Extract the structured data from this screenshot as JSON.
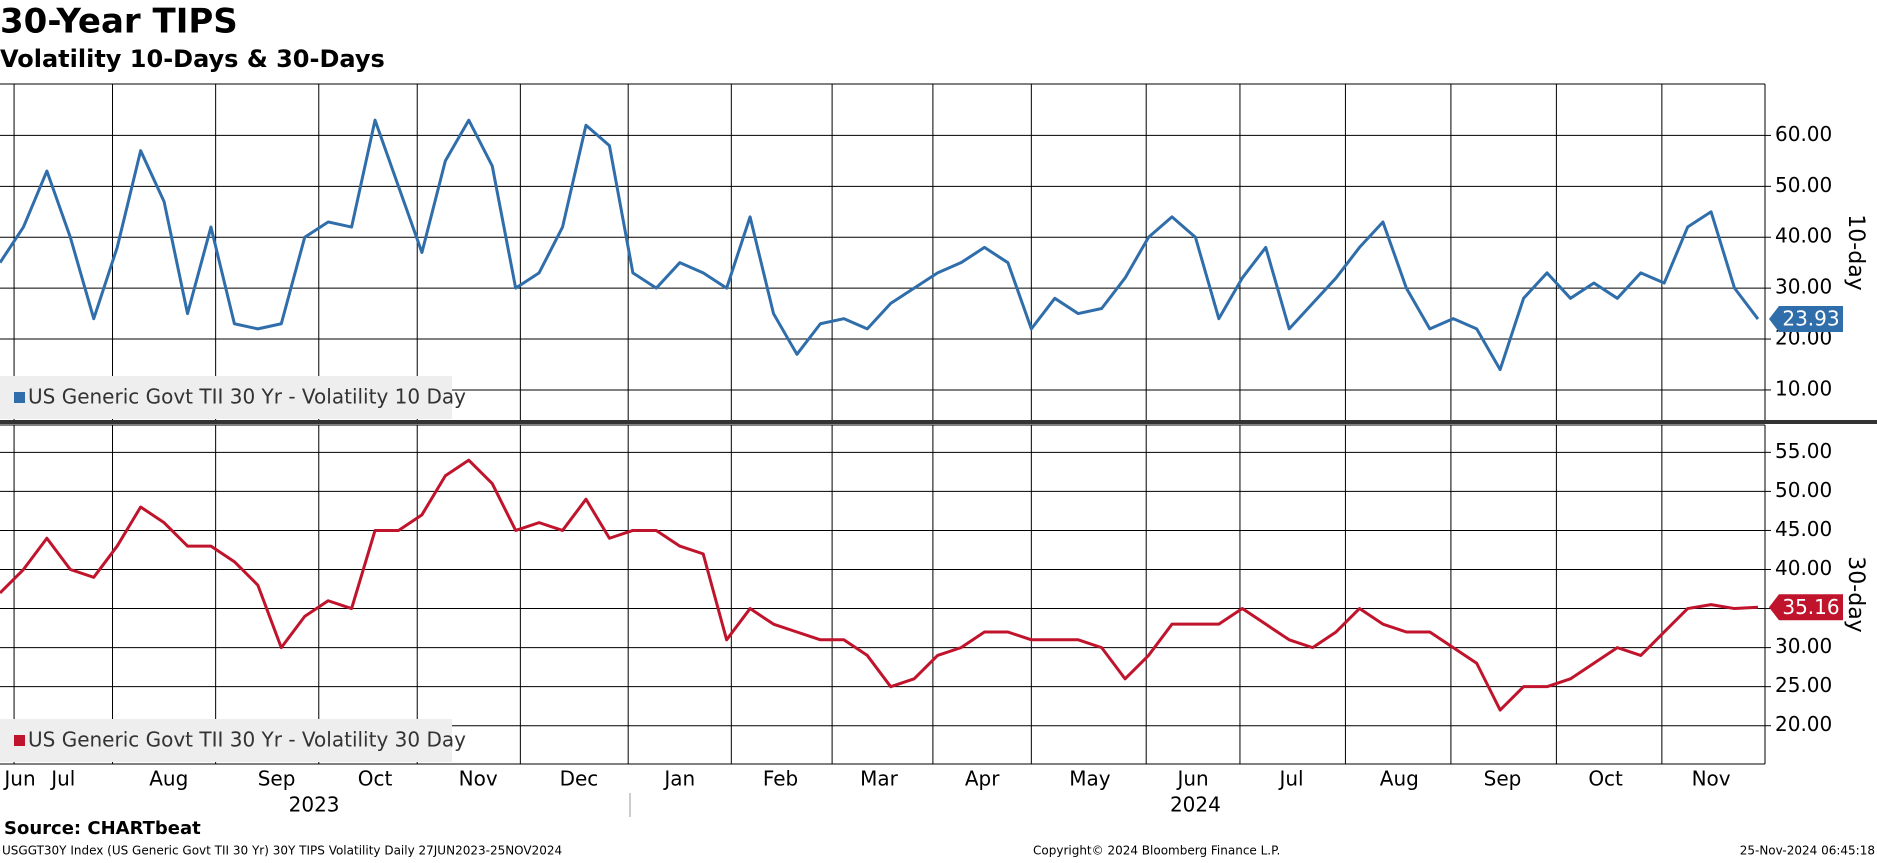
{
  "chart_data": [
    {
      "type": "line",
      "title": "30-Year TIPS",
      "subtitle": "Volatility 10-Days & 30-Days",
      "ylabel": "10-day",
      "legend": "lower left",
      "xlim": [
        0,
        75.3
      ],
      "ylim": [
        3.9,
        70.1
      ],
      "yticks": [
        {
          "value": 10,
          "label": "10.00"
        },
        {
          "value": 20,
          "label": "20.00"
        },
        {
          "value": 30,
          "label": "30.00"
        },
        {
          "value": 40,
          "label": "40.00"
        },
        {
          "value": 50,
          "label": "50.00"
        },
        {
          "value": 60,
          "label": "60.00"
        }
      ],
      "series": [
        {
          "name": "US Generic Govt TII 30 Yr - Volatility 10 Day",
          "color": "#2f6eaa",
          "values": [
            35,
            42,
            53,
            40,
            24,
            38,
            57,
            47,
            25,
            42,
            23,
            22,
            23,
            40,
            43,
            42,
            63,
            50,
            37,
            55,
            63,
            54,
            30,
            33,
            42,
            62,
            58,
            33,
            30,
            35,
            33,
            30,
            44,
            25,
            17,
            23,
            24,
            22,
            27,
            30,
            33,
            35,
            38,
            35,
            22,
            28,
            25,
            26,
            32,
            40,
            44,
            40,
            24,
            32,
            38,
            22,
            27,
            32,
            38,
            43,
            30,
            22,
            24,
            22,
            14,
            28,
            33,
            28,
            31,
            28,
            33,
            31,
            42,
            45,
            30,
            23.93
          ]
        }
      ]
    },
    {
      "type": "line",
      "ylabel": "30-day",
      "legend": "lower left",
      "xlim": [
        0,
        75.3
      ],
      "ylim": [
        15.1,
        58.5
      ],
      "yticks": [
        {
          "value": 20,
          "label": "20.00"
        },
        {
          "value": 25,
          "label": "25.00"
        },
        {
          "value": 30,
          "label": "30.00"
        },
        {
          "value": 35,
          "label": "35.00"
        },
        {
          "value": 40,
          "label": "40.00"
        },
        {
          "value": 45,
          "label": "45.00"
        },
        {
          "value": 50,
          "label": "50.00"
        },
        {
          "value": 55,
          "label": "55.00"
        }
      ],
      "xticks": [
        0.6,
        4.8,
        9.2,
        13.6,
        17.8,
        22.2,
        26.8,
        31.2,
        35.5,
        39.8,
        44.0,
        48.9,
        52.9,
        57.4,
        61.9,
        66.4,
        70.9
      ],
      "xlabels": [
        {
          "value": 0.8,
          "label": "Jun"
        },
        {
          "value": 2.7,
          "label": "Jul"
        },
        {
          "value": 7.2,
          "label": "Aug"
        },
        {
          "value": 11.8,
          "label": "Sep"
        },
        {
          "value": 16.0,
          "label": "Oct"
        },
        {
          "value": 20.4,
          "label": "Nov"
        },
        {
          "value": 24.7,
          "label": "Dec"
        },
        {
          "value": 29.0,
          "label": "Jan"
        },
        {
          "value": 33.3,
          "label": "Feb"
        },
        {
          "value": 37.5,
          "label": "Mar"
        },
        {
          "value": 41.9,
          "label": "Apr"
        },
        {
          "value": 46.5,
          "label": "May"
        },
        {
          "value": 50.9,
          "label": "Jun"
        },
        {
          "value": 55.1,
          "label": "Jul"
        },
        {
          "value": 59.7,
          "label": "Aug"
        },
        {
          "value": 64.1,
          "label": "Sep"
        },
        {
          "value": 68.5,
          "label": "Oct"
        },
        {
          "value": 73.0,
          "label": "Nov"
        }
      ],
      "years": [
        {
          "value": 13.4,
          "label": "2023"
        },
        {
          "value": 51.0,
          "label": "2024"
        }
      ],
      "series": [
        {
          "name": "US Generic Govt TII 30 Yr - Volatility 30 Day",
          "color": "#c0142c",
          "values": [
            37,
            40,
            44,
            40,
            39,
            43,
            48,
            46,
            43,
            43,
            41,
            38,
            30,
            34,
            36,
            35,
            45,
            45,
            47,
            52,
            54,
            51,
            45,
            46,
            45,
            49,
            44,
            45,
            45,
            43,
            42,
            31,
            35,
            33,
            32,
            31,
            31,
            29,
            25,
            26,
            29,
            30,
            32,
            32,
            31,
            31,
            31,
            30,
            26,
            29,
            33,
            33,
            33,
            35,
            33,
            31,
            30,
            32,
            35,
            33,
            32,
            32,
            30,
            28,
            22,
            25,
            25,
            26,
            28,
            30,
            29,
            32,
            35,
            35.5,
            35,
            35.16
          ]
        }
      ]
    }
  ],
  "footer": {
    "source": "Source: CHARTbeat",
    "description": "USGGT30Y Index (US Generic Govt TII 30 Yr) 30Y TIPS Volatility  Daily 27JUN2023-25NOV2024",
    "copyright": "Copyright© 2024 Bloomberg Finance L.P.",
    "timestamp": "25-Nov-2024 06:45:18"
  }
}
